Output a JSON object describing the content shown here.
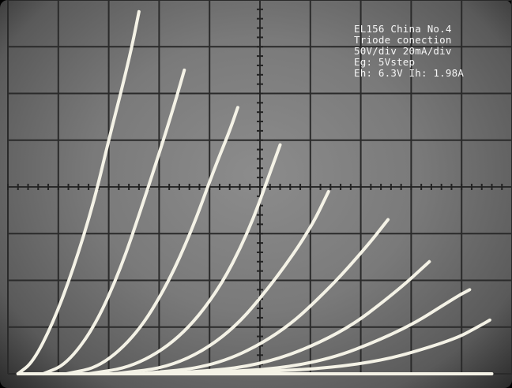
{
  "annotation": {
    "line1": "EL156 China No.4",
    "line2": "Triode conection",
    "line3": "50V/div 20mA/div",
    "line4": "Eg: 5Vstep",
    "line5": "Eh: 6.3V Ih: 1.98A"
  },
  "chart_data": {
    "type": "line",
    "xlabel": "",
    "ylabel": "",
    "x_unit_per_div": "50V",
    "y_unit_per_div": "20mA",
    "x_divisions": 10,
    "y_divisions": 8,
    "xlim": [
      0,
      500
    ],
    "ylim": [
      0,
      160
    ],
    "grid": true,
    "series": [
      {
        "x": [
          10,
          25,
          45,
          65,
          85,
          100,
          113,
          123,
          130
        ],
        "y": [
          0,
          5,
          22,
          45,
          73,
          100,
          122,
          140,
          155
        ]
      },
      {
        "x": [
          35,
          58,
          86,
          112,
          134,
          152,
          165,
          175
        ],
        "y": [
          0,
          4,
          20,
          45,
          73,
          97,
          115,
          130
        ]
      },
      {
        "x": [
          58,
          92,
          128,
          158,
          183,
          204,
          220,
          228
        ],
        "y": [
          0,
          3,
          17,
          38,
          62,
          87,
          104,
          114
        ]
      },
      {
        "x": [
          80,
          125,
          170,
          208,
          238,
          260,
          270
        ],
        "y": [
          0,
          3,
          15,
          35,
          60,
          86,
          98
        ]
      },
      {
        "x": [
          105,
          165,
          220,
          265,
          300,
          318
        ],
        "y": [
          0,
          3,
          17,
          40,
          62,
          78
        ]
      },
      {
        "x": [
          130,
          205,
          270,
          320,
          357,
          377
        ],
        "y": [
          0,
          3,
          17,
          37,
          55,
          66
        ]
      },
      {
        "x": [
          155,
          250,
          330,
          385,
          418
        ],
        "y": [
          0,
          3,
          17,
          35,
          48
        ]
      },
      {
        "x": [
          180,
          300,
          390,
          445,
          458
        ],
        "y": [
          0,
          3,
          18,
          33,
          36
        ]
      },
      {
        "x": [
          205,
          350,
          440,
          470,
          478
        ],
        "y": [
          0,
          3,
          14,
          21,
          23
        ]
      }
    ]
  }
}
